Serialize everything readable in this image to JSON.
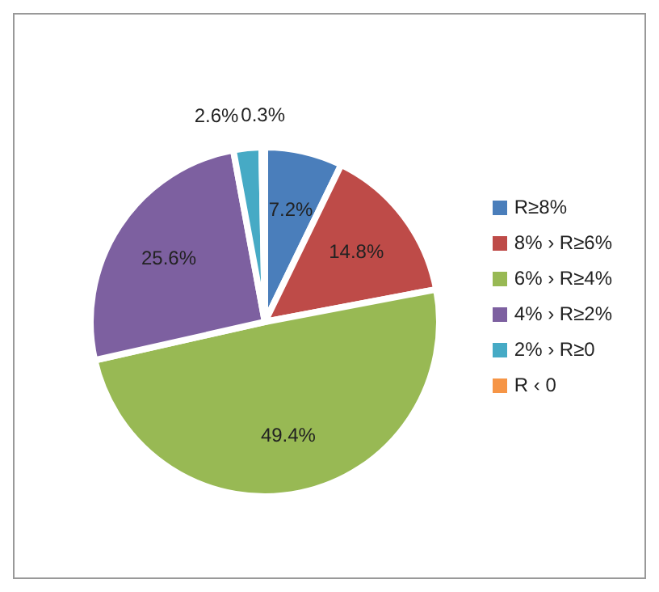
{
  "chart_data": {
    "type": "pie",
    "categories": [
      "R≥8%",
      "8% › R≥6%",
      "6% › R≥4%",
      "4% › R≥2%",
      "2% › R≥0",
      "R ‹ 0"
    ],
    "values": [
      7.2,
      14.8,
      49.4,
      25.6,
      2.6,
      0.3
    ],
    "colors": [
      "#4a7ebb",
      "#be4b48",
      "#98b954",
      "#7d60a0",
      "#46aac5",
      "#f69546"
    ],
    "value_labels": [
      "7.2%",
      "14.8%",
      "49.4%",
      "25.6%",
      "2.6%",
      "0.3%"
    ],
    "legend": "right"
  }
}
